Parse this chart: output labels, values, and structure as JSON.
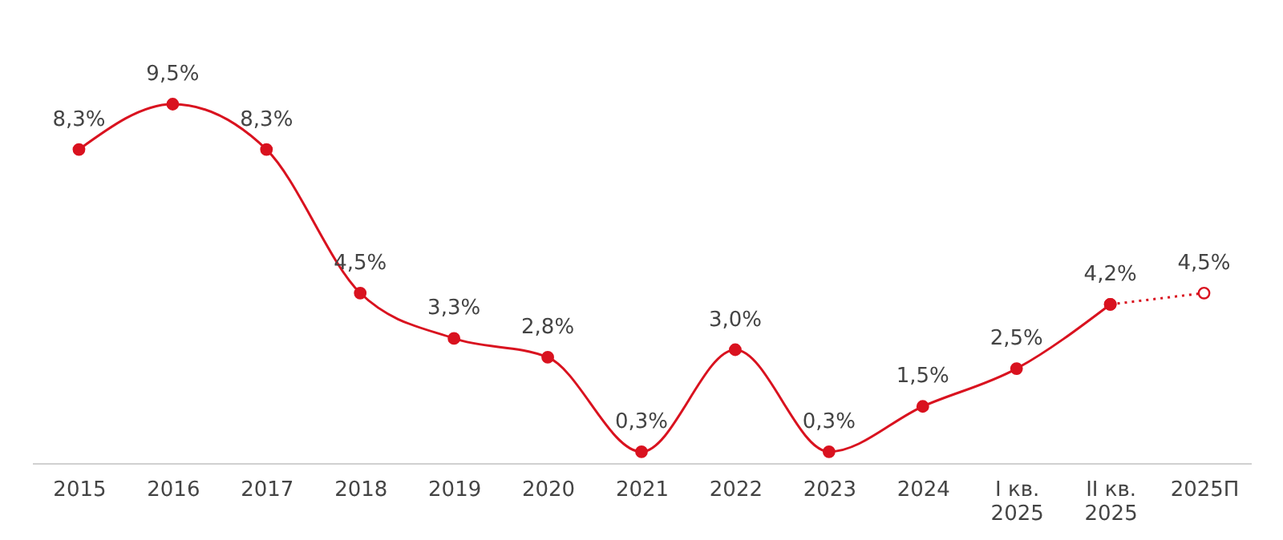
{
  "chart_data": {
    "type": "line",
    "categories": [
      "2015",
      "2016",
      "2017",
      "2018",
      "2019",
      "2020",
      "2021",
      "2022",
      "2023",
      "2024",
      "I кв.\n2025",
      "II кв.\n2025",
      "2025П"
    ],
    "series": [
      {
        "color": "#d9121f",
        "values": [
          8.3,
          9.5,
          8.3,
          4.5,
          3.3,
          2.8,
          0.3,
          3.0,
          0.3,
          1.5,
          2.5,
          4.2,
          null
        ],
        "value_labels": [
          "8,3%",
          "9,5%",
          "8,3%",
          "4,5%",
          "3,3%",
          "2,8%",
          "0,3%",
          "3,0%",
          "0,3%",
          "1,5%",
          "2,5%",
          "4,2%",
          null
        ],
        "marker": "circle",
        "line_style": "solid"
      },
      {
        "color": "#d9121f",
        "values": [
          null,
          null,
          null,
          null,
          null,
          null,
          null,
          null,
          null,
          null,
          null,
          4.2,
          4.5
        ],
        "value_labels": [
          null,
          null,
          null,
          null,
          null,
          null,
          null,
          null,
          null,
          null,
          null,
          null,
          "4,5%"
        ],
        "marker": "circle",
        "line_style": "dotted"
      }
    ],
    "tick_labels": "x",
    "grid": false
  }
}
